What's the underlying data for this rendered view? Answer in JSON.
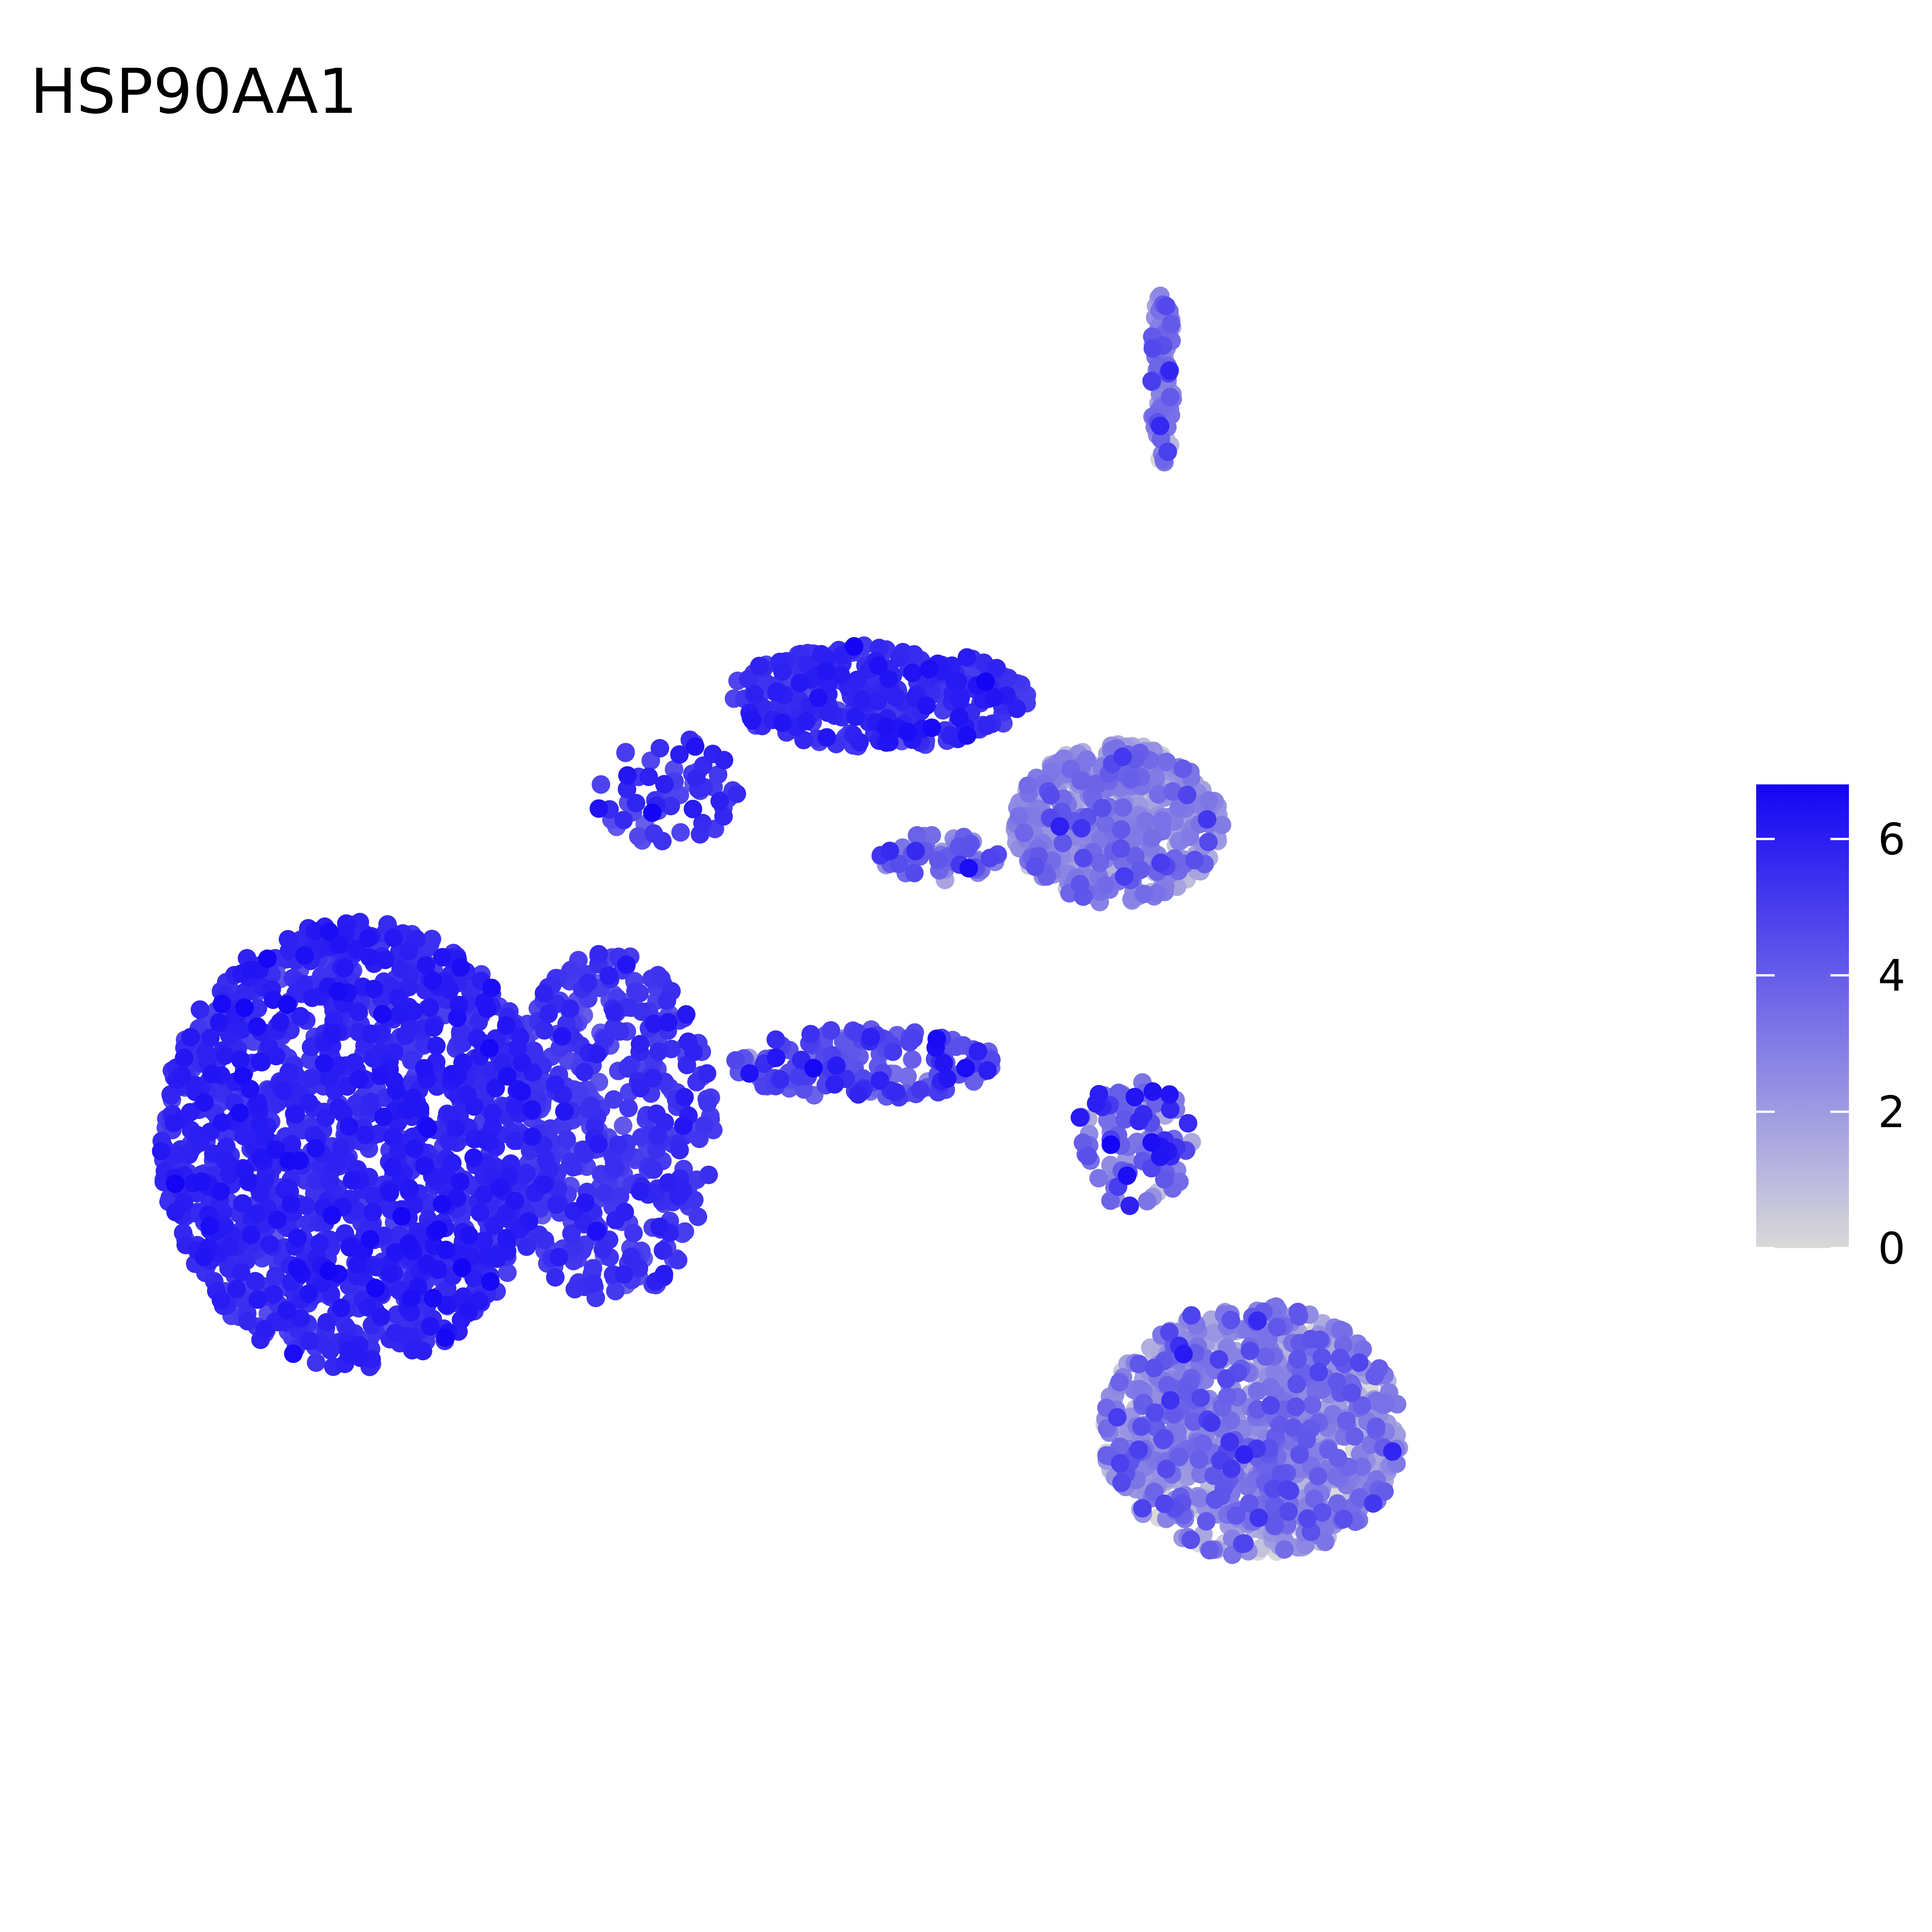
{
  "chart_data": {
    "type": "scatter",
    "title": "HSP90AA1",
    "xlabel": "",
    "ylabel": "",
    "axes_visible": false,
    "grid": false,
    "legend": {
      "type": "colorbar",
      "placement": "right",
      "range": [
        0,
        6.8
      ],
      "ticks": [
        0,
        2,
        4,
        6
      ],
      "tick_labels": [
        "0",
        "2",
        "4",
        "6"
      ],
      "low_color": "#d9d9d9",
      "high_color": "#1405f5"
    },
    "xlim": [
      0,
      100
    ],
    "ylim": [
      0,
      100
    ],
    "clusters": [
      {
        "label": "large left cluster",
        "cx": 16,
        "cy": 42,
        "rx": 13,
        "ry": 14,
        "n": 1500,
        "expr_mean": 5.6,
        "expr_sd": 0.45
      },
      {
        "label": "large left cluster inner right",
        "cx": 33,
        "cy": 43,
        "rx": 7,
        "ry": 11,
        "n": 450,
        "expr_mean": 5.2,
        "expr_sd": 0.5
      },
      {
        "label": "upper arm",
        "cx": 51,
        "cy": 70,
        "rx": 10,
        "ry": 3.2,
        "n": 300,
        "expr_mean": 5.5,
        "expr_sd": 0.5
      },
      {
        "label": "arm link",
        "cx": 37,
        "cy": 64,
        "rx": 5,
        "ry": 3.5,
        "n": 60,
        "expr_mean": 5.2,
        "expr_sd": 0.6
      },
      {
        "label": "bridge",
        "cx": 50,
        "cy": 47,
        "rx": 9,
        "ry": 2.2,
        "n": 160,
        "expr_mean": 4.6,
        "expr_sd": 0.9
      },
      {
        "label": "upper right cluster",
        "cx": 67,
        "cy": 62,
        "rx": 7,
        "ry": 5,
        "n": 520,
        "expr_mean": 2.3,
        "expr_sd": 1.1
      },
      {
        "label": "upper right tail",
        "cx": 55,
        "cy": 60,
        "rx": 4,
        "ry": 1.5,
        "n": 50,
        "expr_mean": 4.0,
        "expr_sd": 1.0
      },
      {
        "label": "connector",
        "cx": 68,
        "cy": 42,
        "rx": 4,
        "ry": 4,
        "n": 90,
        "expr_mean": 3.8,
        "expr_sd": 1.3
      },
      {
        "label": "lower right crescent",
        "cx": 76,
        "cy": 24,
        "rx": 10,
        "ry": 8,
        "n": 950,
        "expr_mean": 2.5,
        "expr_sd": 1.2
      },
      {
        "label": "top island",
        "cx": 70,
        "cy": 90,
        "rx": 0.8,
        "ry": 5.5,
        "n": 80,
        "expr_mean": 2.6,
        "expr_sd": 1.1
      }
    ]
  }
}
